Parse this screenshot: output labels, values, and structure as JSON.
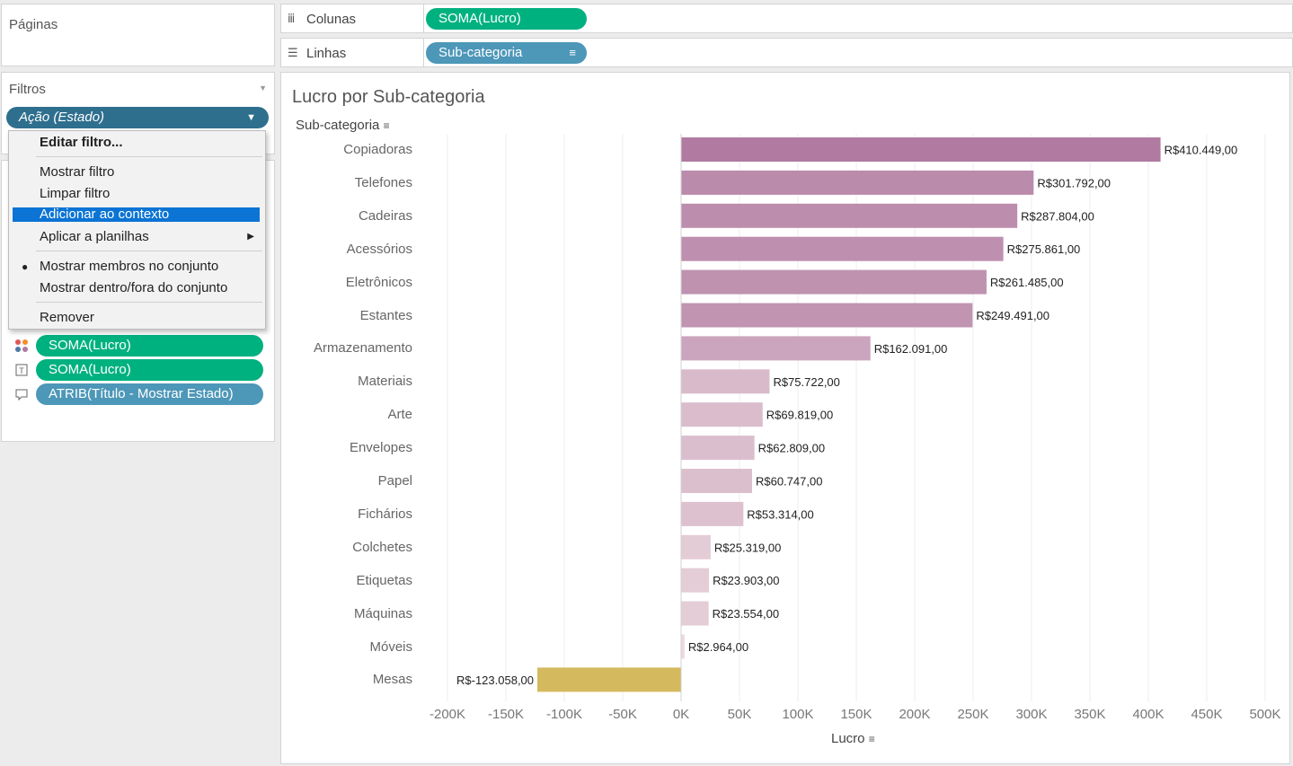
{
  "pages_card": {
    "title": "Páginas"
  },
  "columns_shelf": {
    "icon": "columns-icon",
    "label": "Colunas",
    "pill": "SOMA(Lucro)"
  },
  "rows_shelf": {
    "icon": "rows-icon",
    "label": "Linhas",
    "pill": "Sub-categoria"
  },
  "filters_card": {
    "title": "Filtros",
    "filter_pill": "Ação (Estado)"
  },
  "context_menu": {
    "items": [
      {
        "label": "Editar filtro...",
        "bold": true
      },
      {
        "label": "Mostrar filtro"
      },
      {
        "label": "Limpar filtro"
      },
      {
        "label": "Adicionar ao contexto",
        "highlighted": true
      },
      {
        "label": "Aplicar a planilhas",
        "submenu": true
      },
      {
        "label": "Mostrar membros no conjunto",
        "checked": true
      },
      {
        "label": "Mostrar dentro/fora do conjunto"
      },
      {
        "label": "Remover"
      }
    ]
  },
  "marks_card": {
    "rows": [
      {
        "icon": "color-icon",
        "pill": "SOMA(Lucro)",
        "color": "green"
      },
      {
        "icon": "label-icon",
        "pill": "SOMA(Lucro)",
        "color": "green"
      },
      {
        "icon": "tooltip-icon",
        "pill": "ATRIB(Título - Mostrar Estado)",
        "color": "blue"
      }
    ]
  },
  "chart": {
    "title": "Lucro por Sub-categoria",
    "row_header": "Sub-categoria",
    "x_axis_label": "Lucro"
  },
  "chart_data": {
    "type": "bar",
    "orientation": "horizontal",
    "title": "Lucro por Sub-categoria",
    "xlabel": "Lucro",
    "ylabel": "Sub-categoria",
    "xlim": [
      -200000,
      500000
    ],
    "x_ticks": [
      -200000,
      -150000,
      -100000,
      -50000,
      0,
      50000,
      100000,
      150000,
      200000,
      250000,
      300000,
      350000,
      400000,
      450000,
      500000
    ],
    "x_tick_labels": [
      "-200K",
      "-150K",
      "-100K",
      "-50K",
      "0K",
      "50K",
      "100K",
      "150K",
      "200K",
      "250K",
      "300K",
      "350K",
      "400K",
      "450K",
      "500K"
    ],
    "categories": [
      "Copiadoras",
      "Telefones",
      "Cadeiras",
      "Acessórios",
      "Eletrônicos",
      "Estantes",
      "Armazenamento",
      "Materiais",
      "Arte",
      "Envelopes",
      "Papel",
      "Fichários",
      "Colchetes",
      "Etiquetas",
      "Máquinas",
      "Móveis",
      "Mesas"
    ],
    "values": [
      410449,
      301792,
      287804,
      275861,
      261485,
      249491,
      162091,
      75722,
      69819,
      62809,
      60747,
      53314,
      25319,
      23903,
      23554,
      2964,
      -123058
    ],
    "value_labels": [
      "R$410.449,00",
      "R$301.792,00",
      "R$287.804,00",
      "R$275.861,00",
      "R$261.485,00",
      "R$249.491,00",
      "R$162.091,00",
      "R$75.722,00",
      "R$69.819,00",
      "R$62.809,00",
      "R$60.747,00",
      "R$53.314,00",
      "R$25.319,00",
      "R$23.903,00",
      "R$23.554,00",
      "R$2.964,00",
      "R$-123.058,00"
    ],
    "colors": {
      "positive_max": "#b07aa1",
      "positive_min": "#f0dfe2",
      "negative": "#d4b95e"
    },
    "grid": true,
    "sorted": "descending"
  }
}
